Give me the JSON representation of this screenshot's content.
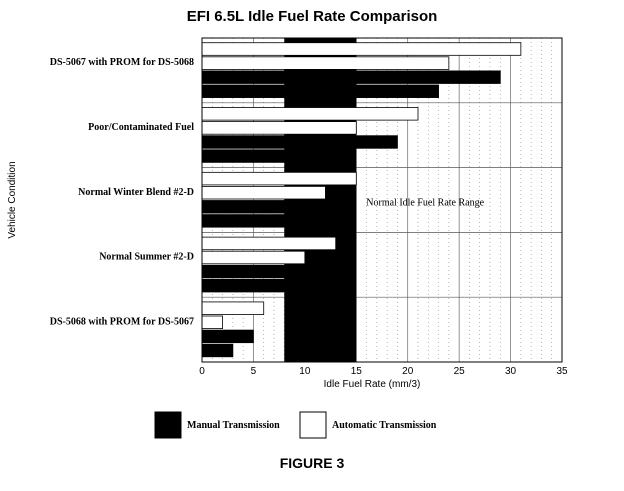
{
  "chart_data": {
    "type": "bar",
    "orientation": "horizontal",
    "title": "EFI 6.5L Idle Fuel Rate Comparison",
    "caption": "FIGURE 3",
    "xlabel": "Idle Fuel Rate (mm/3)",
    "ylabel": "Vehicle Condition",
    "xlim": [
      0,
      35
    ],
    "xticks": [
      0,
      5,
      10,
      15,
      20,
      25,
      30,
      35
    ],
    "grid": true,
    "categories": [
      "DS-5067 with PROM for DS-5068",
      "Poor/Contaminated Fuel",
      "Normal Winter Blend #2-D",
      "Normal Summer #2-D",
      "DS-5068 with PROM for DS-5067"
    ],
    "bars": [
      [
        {
          "type": "auto",
          "value": 31
        },
        {
          "type": "auto",
          "value": 24
        },
        {
          "type": "manual",
          "value": 29
        },
        {
          "type": "manual",
          "value": 23
        }
      ],
      [
        {
          "type": "auto",
          "value": 21
        },
        {
          "type": "auto",
          "value": 15
        },
        {
          "type": "manual",
          "value": 19
        },
        {
          "type": "manual",
          "value": 13.5
        }
      ],
      [
        {
          "type": "auto",
          "value": 15
        },
        {
          "type": "auto",
          "value": 12
        },
        {
          "type": "manual",
          "value": 13
        },
        {
          "type": "manual",
          "value": 10
        }
      ],
      [
        {
          "type": "auto",
          "value": 13
        },
        {
          "type": "auto",
          "value": 10
        },
        {
          "type": "manual",
          "value": 10.5
        },
        {
          "type": "manual",
          "value": 8
        }
      ],
      [
        {
          "type": "auto",
          "value": 6
        },
        {
          "type": "auto",
          "value": 2
        },
        {
          "type": "manual",
          "value": 5
        },
        {
          "type": "manual",
          "value": 3
        }
      ]
    ],
    "normal_range": {
      "from": 8,
      "to": 15,
      "label": "Normal Idle Fuel Rate Range"
    },
    "legend": {
      "position": "bottom",
      "items": [
        {
          "label": "Manual Transmission",
          "fill": "#000000"
        },
        {
          "label": "Automatic Transmission",
          "fill": "#ffffff"
        }
      ]
    }
  }
}
